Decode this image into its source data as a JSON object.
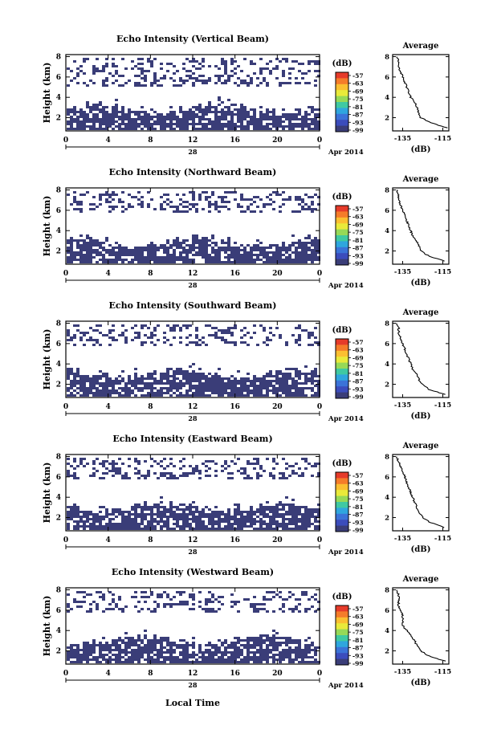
{
  "figure": {
    "date_label": "Apr 2014",
    "day_label": "28",
    "xlabel": "Local Time",
    "ylabel": "Height (km)",
    "x_ticks": [
      "0",
      "4",
      "8",
      "12",
      "16",
      "20",
      "0"
    ],
    "y_ticks": [
      "2",
      "4",
      "6",
      "8"
    ],
    "colorbar_unit": "(dB)",
    "colorbar_ticks": [
      "-57",
      "-63",
      "-69",
      "-75",
      "-81",
      "-87",
      "-93",
      "-99"
    ],
    "colorbar_colors": [
      "#e63b2a",
      "#f57c2a",
      "#fbbf31",
      "#e9ea3a",
      "#96d957",
      "#3fc9a2",
      "#2fa6de",
      "#3b73d8",
      "#3b4cbc",
      "#3a3d78"
    ],
    "echo_color": "#3a3d78",
    "avg_title": "Average",
    "avg_xlabel": "(dB)",
    "avg_x_ticks": [
      "-135",
      "-115"
    ],
    "avg_y_ticks": [
      "2",
      "4",
      "6",
      "8"
    ]
  },
  "chart_data": [
    {
      "type": "heatmap",
      "title": "Echo Intensity (Vertical Beam)",
      "x_range_hours": [
        0,
        24
      ],
      "y_range_km": [
        0.7,
        8.2
      ],
      "echo_layers_km": {
        "lower_continuous": [
          1.0,
          3.0
        ],
        "upper_sparse": [
          5.2,
          8.1
        ]
      },
      "average_profile": {
        "title": "Average",
        "xlim": [
          -140,
          -112
        ],
        "ylim": [
          0.7,
          8.2
        ],
        "height_km": [
          1.0,
          1.5,
          2.0,
          2.5,
          3.0,
          3.5,
          4.0,
          4.5,
          5.0,
          5.5,
          6.0,
          6.5,
          7.0,
          7.5,
          8.0
        ],
        "value_db": [
          -113,
          -121,
          -126,
          -127,
          -128,
          -129,
          -131,
          -132,
          -133,
          -134,
          -135,
          -136,
          -137,
          -137,
          -138
        ]
      }
    },
    {
      "type": "heatmap",
      "title": "Echo Intensity (Northward Beam)",
      "x_range_hours": [
        0,
        24
      ],
      "y_range_km": [
        0.7,
        8.2
      ],
      "echo_layers_km": {
        "lower_continuous": [
          1.0,
          3.0
        ],
        "upper_sparse": [
          5.8,
          8.1
        ]
      },
      "average_profile": {
        "title": "Average",
        "xlim": [
          -140,
          -112
        ],
        "ylim": [
          0.7,
          8.2
        ],
        "height_km": [
          1.0,
          1.5,
          2.0,
          2.5,
          3.0,
          3.5,
          4.0,
          4.5,
          5.0,
          5.5,
          6.0,
          6.5,
          7.0,
          7.5,
          8.0
        ],
        "value_db": [
          -114,
          -122,
          -126,
          -127,
          -128,
          -130,
          -131,
          -132,
          -133,
          -134,
          -135,
          -136,
          -137,
          -137,
          -138
        ]
      }
    },
    {
      "type": "heatmap",
      "title": "Echo Intensity (Southward Beam)",
      "x_range_hours": [
        0,
        24
      ],
      "y_range_km": [
        0.7,
        8.2
      ],
      "echo_layers_km": {
        "lower_continuous": [
          1.0,
          3.2
        ],
        "upper_sparse": [
          5.8,
          8.1
        ]
      },
      "average_profile": {
        "title": "Average",
        "xlim": [
          -140,
          -112
        ],
        "ylim": [
          0.7,
          8.2
        ],
        "height_km": [
          1.0,
          1.5,
          2.0,
          2.5,
          3.0,
          3.5,
          4.0,
          4.5,
          5.0,
          5.5,
          6.0,
          6.5,
          7.0,
          7.5,
          8.0
        ],
        "value_db": [
          -114,
          -122,
          -125,
          -127,
          -128,
          -130,
          -131,
          -132,
          -133,
          -134,
          -135,
          -136,
          -137,
          -137,
          -138
        ]
      }
    },
    {
      "type": "heatmap",
      "title": "Echo Intensity (Eastward Beam)",
      "x_range_hours": [
        0,
        24
      ],
      "y_range_km": [
        0.7,
        8.2
      ],
      "echo_layers_km": {
        "lower_continuous": [
          1.0,
          3.2
        ],
        "upper_sparse": [
          5.8,
          8.1
        ]
      },
      "average_profile": {
        "title": "Average",
        "xlim": [
          -140,
          -112
        ],
        "ylim": [
          0.7,
          8.2
        ],
        "height_km": [
          1.0,
          1.5,
          2.0,
          2.5,
          3.0,
          3.5,
          4.0,
          4.5,
          5.0,
          5.5,
          6.0,
          6.5,
          7.0,
          7.5,
          8.0
        ],
        "value_db": [
          -114,
          -121,
          -125,
          -127,
          -128,
          -129,
          -130,
          -131,
          -132,
          -133,
          -134,
          -135,
          -136,
          -137,
          -138
        ]
      }
    },
    {
      "type": "heatmap",
      "title": "Echo Intensity (Westward Beam)",
      "x_range_hours": [
        0,
        24
      ],
      "y_range_km": [
        0.7,
        8.2
      ],
      "echo_layers_km": {
        "lower_continuous": [
          1.0,
          3.2
        ],
        "upper_sparse": [
          5.8,
          8.1
        ]
      },
      "average_profile": {
        "title": "Average",
        "xlim": [
          -140,
          -112
        ],
        "ylim": [
          0.7,
          8.2
        ],
        "height_km": [
          1.0,
          1.5,
          2.0,
          2.5,
          3.0,
          3.5,
          4.0,
          4.5,
          5.0,
          5.5,
          6.0,
          6.5,
          7.0,
          7.5,
          8.0
        ],
        "value_db": [
          -114,
          -122,
          -126,
          -128,
          -129,
          -131,
          -133,
          -135,
          -135,
          -135,
          -136,
          -137,
          -137,
          -137,
          -138
        ]
      }
    }
  ]
}
